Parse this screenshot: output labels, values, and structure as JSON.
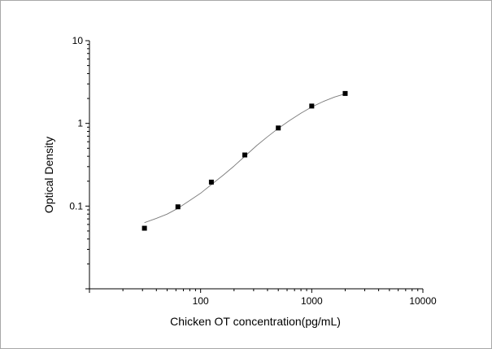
{
  "chart_data": {
    "type": "scatter",
    "title": "",
    "xlabel": "Chicken OT concentration(pg/mL)",
    "ylabel": "Optical Density",
    "x_scale": "log",
    "y_scale": "log",
    "xlim": [
      10,
      10000
    ],
    "ylim": [
      0.01,
      10
    ],
    "x_ticks": [
      {
        "value": 100,
        "label": "100"
      },
      {
        "value": 1000,
        "label": "1000"
      },
      {
        "value": 10000,
        "label": "10000"
      }
    ],
    "y_ticks": [
      {
        "value": 0.1,
        "label": "0.1"
      },
      {
        "value": 1,
        "label": "1"
      },
      {
        "value": 10,
        "label": "10"
      }
    ],
    "grid": false,
    "legend": "none",
    "series": [
      {
        "type": "scatter",
        "marker": "square",
        "color": "#000000",
        "points": [
          {
            "x": 31.25,
            "y": 0.054
          },
          {
            "x": 62.5,
            "y": 0.098
          },
          {
            "x": 125,
            "y": 0.195
          },
          {
            "x": 250,
            "y": 0.415
          },
          {
            "x": 500,
            "y": 0.88
          },
          {
            "x": 1000,
            "y": 1.62
          },
          {
            "x": 2000,
            "y": 2.3
          }
        ]
      },
      {
        "type": "line",
        "style": "fitted-curve",
        "color": "#7a7a7a",
        "points": [
          {
            "x": 31.25,
            "y": 0.063
          },
          {
            "x": 40,
            "y": 0.071
          },
          {
            "x": 50,
            "y": 0.08
          },
          {
            "x": 62.5,
            "y": 0.094
          },
          {
            "x": 80,
            "y": 0.117
          },
          {
            "x": 100,
            "y": 0.143
          },
          {
            "x": 125,
            "y": 0.182
          },
          {
            "x": 160,
            "y": 0.237
          },
          {
            "x": 200,
            "y": 0.305
          },
          {
            "x": 250,
            "y": 0.4
          },
          {
            "x": 320,
            "y": 0.54
          },
          {
            "x": 400,
            "y": 0.69
          },
          {
            "x": 500,
            "y": 0.87
          },
          {
            "x": 630,
            "y": 1.08
          },
          {
            "x": 800,
            "y": 1.33
          },
          {
            "x": 1000,
            "y": 1.58
          },
          {
            "x": 1260,
            "y": 1.83
          },
          {
            "x": 1600,
            "y": 2.08
          },
          {
            "x": 2000,
            "y": 2.28
          }
        ]
      }
    ]
  }
}
